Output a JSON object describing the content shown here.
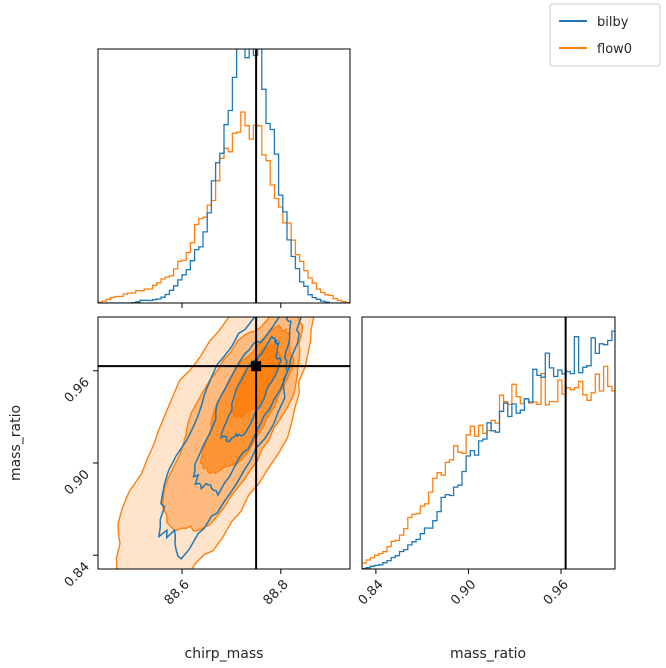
{
  "colors": {
    "bilby": "#1f77b4",
    "flow0": "#ff7f0e",
    "truth": "#000000",
    "frame": "#000000"
  },
  "legend": {
    "placement": "top-right",
    "entries": [
      "bilby",
      "flow0"
    ]
  },
  "chart_data": {
    "type": "corner",
    "parameters": [
      "chirp_mass",
      "mass_ratio"
    ],
    "truth": {
      "chirp_mass": 88.75,
      "mass_ratio": 0.963
    },
    "axes": {
      "chirp_mass": {
        "range": [
          88.43,
          88.94
        ],
        "ticks": [
          "88.6",
          "88.8"
        ],
        "tick_values": [
          88.6,
          88.8
        ],
        "label": "chirp_mass"
      },
      "mass_ratio": {
        "range": [
          0.831,
          0.995
        ],
        "ticks": [
          "0.84",
          "0.90",
          "0.96"
        ],
        "tick_values": [
          0.84,
          0.9,
          0.96
        ],
        "label": "mass_ratio"
      }
    },
    "marginal_chirp_mass": {
      "bin_width": 0.0085,
      "series": [
        {
          "name": "bilby",
          "x": [
            88.5,
            88.52,
            88.54,
            88.56,
            88.58,
            88.6,
            88.62,
            88.64,
            88.66,
            88.68,
            88.7,
            88.72,
            88.74,
            88.76,
            88.78,
            88.8,
            88.82,
            88.84,
            88.86,
            88.88,
            88.9
          ],
          "y": [
            0.0,
            0.01,
            0.01,
            0.02,
            0.05,
            0.1,
            0.17,
            0.26,
            0.4,
            0.62,
            0.85,
            0.97,
            1.0,
            0.93,
            0.7,
            0.45,
            0.24,
            0.1,
            0.03,
            0.01,
            0.0
          ]
        },
        {
          "name": "flow0",
          "x": [
            88.43,
            88.46,
            88.5,
            88.54,
            88.58,
            88.62,
            88.66,
            88.7,
            88.73,
            88.76,
            88.8,
            88.84,
            88.88,
            88.92,
            88.94
          ],
          "y": [
            0.0,
            0.02,
            0.04,
            0.06,
            0.12,
            0.24,
            0.42,
            0.62,
            0.72,
            0.66,
            0.4,
            0.16,
            0.05,
            0.01,
            0.0
          ]
        }
      ]
    },
    "marginal_mass_ratio": {
      "bin_width": 0.0027,
      "series": [
        {
          "name": "bilby",
          "x": [
            0.831,
            0.845,
            0.86,
            0.875,
            0.89,
            0.905,
            0.92,
            0.935,
            0.95,
            0.965,
            0.98,
            0.995
          ],
          "y": [
            0.0,
            0.02,
            0.08,
            0.18,
            0.32,
            0.46,
            0.6,
            0.7,
            0.8,
            0.86,
            0.91,
            0.96
          ]
        },
        {
          "name": "flow0",
          "x": [
            0.831,
            0.845,
            0.86,
            0.875,
            0.89,
            0.905,
            0.92,
            0.935,
            0.95,
            0.965,
            0.98,
            0.995
          ],
          "y": [
            0.02,
            0.07,
            0.17,
            0.3,
            0.44,
            0.56,
            0.65,
            0.71,
            0.74,
            0.75,
            0.76,
            0.8
          ]
        }
      ]
    },
    "joint_peak": {
      "chirp_mass": 88.75,
      "mass_ratio": 0.963
    }
  }
}
